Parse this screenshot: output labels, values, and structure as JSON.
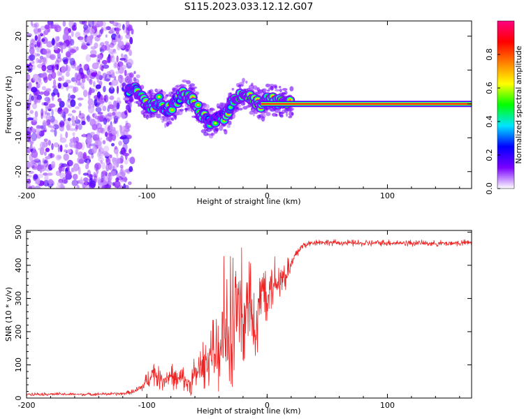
{
  "figure_title": "S115.2023.033.12.12.G07",
  "chart_data": [
    {
      "type": "heatmap",
      "title": "S115.2023.033.12.12.G07",
      "xlabel": "Height of straight line (km)",
      "ylabel": "Frequency (Hz)",
      "xlim": [
        -200,
        170
      ],
      "ylim": [
        -25,
        24.5
      ],
      "xticks": [
        -200,
        -100,
        0,
        100
      ],
      "yticks": [
        -20,
        -10,
        0,
        10,
        20
      ],
      "frequency_track": {
        "x": [
          -115,
          -110,
          -105,
          -100,
          -95,
          -90,
          -85,
          -80,
          -75,
          -70,
          -65,
          -60,
          -55,
          -50,
          -45,
          -40,
          -35,
          -30,
          -25,
          -20,
          -15,
          -10,
          -5,
          0,
          5,
          10,
          20,
          40,
          80,
          120,
          170
        ],
        "y": [
          4,
          5,
          2,
          0,
          -1,
          1,
          -2,
          -1,
          1,
          3,
          2,
          0,
          -3,
          -5,
          -6,
          -3,
          -4,
          0,
          2,
          3,
          2,
          1,
          -1,
          1,
          1,
          0.5,
          0,
          0,
          0,
          0,
          0
        ]
      },
      "noise_region_x": [
        -200,
        -112
      ],
      "colorbar": {
        "label": "Normalized spectral amplitude",
        "range": [
          0.0,
          1.0
        ],
        "ticks": [
          0.0,
          0.2,
          0.4,
          0.6,
          0.8
        ],
        "tick_labels": [
          "0.0",
          "0.2",
          "0.4",
          "0.6",
          "0.8"
        ],
        "colors": [
          "#ffffff",
          "#7a00ff",
          "#0000ff",
          "#00e5ff",
          "#00ff00",
          "#ffff00",
          "#ff8000",
          "#ff0000",
          "#ff0080"
        ]
      }
    },
    {
      "type": "line",
      "xlabel": "Height of straight line (km)",
      "ylabel": "SNR (10 * v/v)",
      "xlim": [
        -200,
        170
      ],
      "ylim": [
        0,
        505
      ],
      "xticks": [
        -200,
        -100,
        0,
        100
      ],
      "yticks": [
        0,
        100,
        200,
        300,
        400,
        500
      ],
      "series": [
        {
          "name": "SNR",
          "color": "#ee2222",
          "x": [
            -200,
            -180,
            -160,
            -140,
            -120,
            -110,
            -105,
            -100,
            -95,
            -90,
            -85,
            -80,
            -75,
            -70,
            -65,
            -60,
            -55,
            -50,
            -45,
            -40,
            -35,
            -30,
            -25,
            -20,
            -15,
            -10,
            -5,
            0,
            5,
            10,
            15,
            20,
            25,
            30,
            40,
            60,
            80,
            100,
            120,
            140,
            170
          ],
          "y": [
            12,
            12,
            11,
            12,
            13,
            20,
            30,
            50,
            80,
            60,
            55,
            70,
            50,
            60,
            40,
            70,
            90,
            110,
            140,
            130,
            190,
            160,
            280,
            210,
            320,
            150,
            330,
            330,
            350,
            360,
            370,
            400,
            440,
            460,
            470,
            468,
            466,
            468,
            467,
            466,
            468
          ],
          "noise": [
            5,
            5,
            5,
            5,
            5,
            8,
            15,
            30,
            40,
            35,
            35,
            40,
            35,
            40,
            35,
            60,
            70,
            80,
            100,
            120,
            150,
            170,
            180,
            160,
            140,
            120,
            120,
            100,
            90,
            80,
            60,
            40,
            20,
            12,
            10,
            10,
            10,
            10,
            10,
            10,
            10
          ]
        }
      ]
    }
  ]
}
